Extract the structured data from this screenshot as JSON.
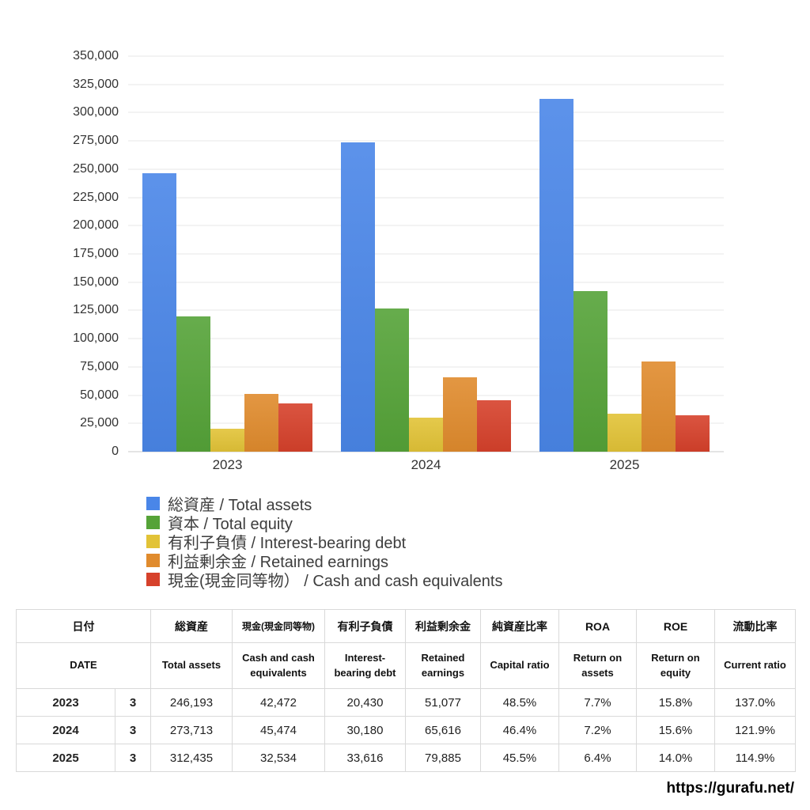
{
  "chart_data": {
    "type": "bar",
    "categories": [
      "2023",
      "2024",
      "2025"
    ],
    "series": [
      {
        "name": "総資産 / Total assets",
        "color": "#4a86e8",
        "values": [
          246193,
          273713,
          312435
        ]
      },
      {
        "name": "資本 / Total equity",
        "color": "#55a338",
        "values": [
          119400,
          127000,
          142200
        ]
      },
      {
        "name": "有利子負債 / Interest-bearing debt",
        "color": "#e2c337",
        "values": [
          20430,
          30180,
          33616
        ]
      },
      {
        "name": "利益剰余金 / Retained earnings",
        "color": "#e08b2d",
        "values": [
          51077,
          65616,
          79885
        ]
      },
      {
        "name": "現金(現金同等物） / Cash and cash equivalents",
        "color": "#d6412b",
        "values": [
          42472,
          45474,
          32534
        ]
      }
    ],
    "title": "",
    "xlabel": "",
    "ylabel": "",
    "ylim": [
      0,
      350000
    ],
    "ytick_step": 25000,
    "grid": true,
    "legend_position": "below-left"
  },
  "table": {
    "headers_jp": [
      "日付",
      "総資産",
      "現金(現金同等物)",
      "有利子負債",
      "利益剰余金",
      "純資産比率",
      "ROA",
      "ROE",
      "流動比率"
    ],
    "headers_en": [
      "DATE",
      "Total assets",
      "Cash and cash equivalents",
      "Interest-bearing debt",
      "Retained earnings",
      "Capital ratio",
      "Return on assets",
      "Return on equity",
      "Current ratio"
    ],
    "rows": [
      {
        "year": "2023",
        "month": "3",
        "values": [
          "246,193",
          "42,472",
          "20,430",
          "51,077",
          "48.5%",
          "7.7%",
          "15.8%",
          "137.0%"
        ]
      },
      {
        "year": "2024",
        "month": "3",
        "values": [
          "273,713",
          "45,474",
          "30,180",
          "65,616",
          "46.4%",
          "7.2%",
          "15.6%",
          "121.9%"
        ]
      },
      {
        "year": "2025",
        "month": "3",
        "values": [
          "312,435",
          "32,534",
          "33,616",
          "79,885",
          "45.5%",
          "6.4%",
          "14.0%",
          "114.9%"
        ]
      }
    ]
  },
  "footer": {
    "url": "https://gurafu.net/"
  }
}
